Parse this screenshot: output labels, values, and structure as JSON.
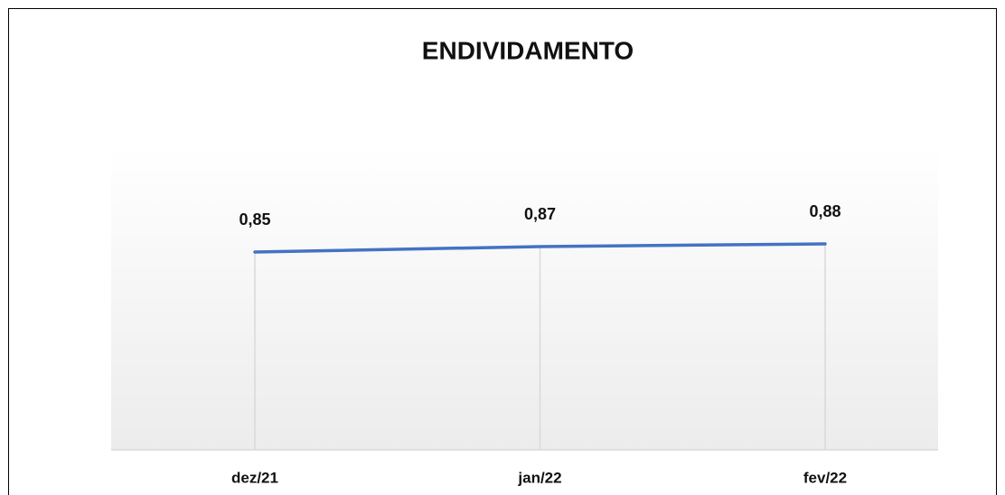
{
  "chart_data": {
    "type": "line",
    "title": "ENDIVIDAMENTO",
    "categories": [
      "dez/21",
      "jan/22",
      "fev/22"
    ],
    "values": [
      0.85,
      0.87,
      0.88
    ],
    "value_labels": [
      "0,85",
      "0,87",
      "0,88"
    ],
    "color": "#4472c4"
  }
}
